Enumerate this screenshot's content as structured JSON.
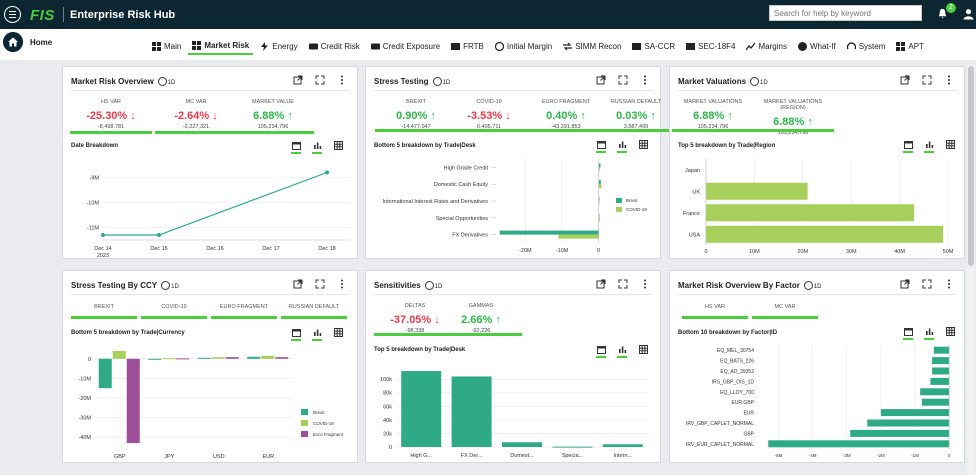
{
  "header": {
    "brand": "FIS",
    "app_title": "Enterprise Risk Hub",
    "search_placeholder": "Search for help by keyword",
    "notifications": "2"
  },
  "nav": {
    "home_label": "Home",
    "tabs": [
      "Main",
      "Market Risk",
      "Energy",
      "Credit Risk",
      "Credit Exposure",
      "FRTB",
      "Initial Margin",
      "SIMM Recon",
      "SA-CCR",
      "SEC-18F4",
      "Margins",
      "What-If",
      "System",
      "APT"
    ],
    "active_tab": "Market Risk"
  },
  "colors": {
    "green": "#4bcd3e",
    "teal": "#2eaa87",
    "lime": "#a6cf5c",
    "purple": "#9c4f96",
    "navy": "#0c2731",
    "pos": "#2fb54a",
    "neg": "#e93a4a"
  },
  "cards": {
    "overview": {
      "title": "Market Risk Overview",
      "clock_label": "1D",
      "kpis": [
        {
          "label": "HS VAR",
          "value": "-25.30%",
          "dir": "down",
          "sub": "-8,498,781"
        },
        {
          "label": "MC VAR",
          "value": "-2.64%",
          "dir": "down",
          "sub": "-2,227,321"
        },
        {
          "label": "MARKET VALUE",
          "value": "6.88%",
          "dir": "up",
          "sub": "105,234,796"
        }
      ],
      "chart_title": "Date Breakdown"
    },
    "stress": {
      "title": "Stress Testing",
      "clock_label": "1D",
      "kpis": [
        {
          "label": "BREXIT",
          "value": "0.90%",
          "dir": "up",
          "sub": "-14,477,047"
        },
        {
          "label": "COVID-19",
          "value": "-3.53%",
          "dir": "down",
          "sub": "6,405,711"
        },
        {
          "label": "EURO FRAGMENT",
          "value": "0.40%",
          "dir": "up",
          "sub": "-43,291,853"
        },
        {
          "label": "RUSSIAN DEFAULT",
          "value": "0.03%",
          "dir": "up",
          "sub": "3,587,499"
        }
      ],
      "chart_title": "Bottom 5 breakdown by Trade|Desk"
    },
    "valuations": {
      "title": "Market Valuations",
      "clock_label": "1D",
      "kpis": [
        {
          "label": "MARKET VALUATIONS",
          "value": "6.88%",
          "dir": "up",
          "sub": "105,234,796"
        },
        {
          "label": "MARKET VALUATIONS (REGION)",
          "value": "6.88%",
          "dir": "up",
          "sub": "105,234,796"
        }
      ],
      "chart_title": "Top 5 breakdown by Trade|Region"
    },
    "stress_ccy": {
      "title": "Stress Testing By CCY",
      "clock_label": "1D",
      "tabs": [
        "BREXIT",
        "COVID-19",
        "EURO FRAGMENT",
        "RUSSIAN DEFAULT"
      ],
      "chart_title": "Bottom 5 breakdown by Trade|Currency"
    },
    "sensitivities": {
      "title": "Sensitivities",
      "clock_label": "1D",
      "kpis": [
        {
          "label": "DELTAS",
          "value": "-37.05%",
          "dir": "down",
          "sub": "-98,338"
        },
        {
          "label": "GAMMAS",
          "value": "2.66%",
          "dir": "up",
          "sub": "-92,226"
        }
      ],
      "chart_title": "Top 5 breakdown by Trade|Desk"
    },
    "factor": {
      "title": "Market Risk Overview By Factor",
      "clock_label": "1D",
      "tabs": [
        "HS VAR",
        "MC VAR"
      ],
      "chart_title": "Bottom 10 breakdown by Factor|ID"
    }
  },
  "chart_data": [
    {
      "type": "line",
      "title": "Date Breakdown",
      "categories": [
        "Dec 14 2023",
        "Dec 15",
        "Dec 16",
        "Dec 17",
        "Dec 18"
      ],
      "series": [
        {
          "name": "Market Risk",
          "points": [
            {
              "x": "Dec 14",
              "y": -11.3
            },
            {
              "x": "Dec 15",
              "y": -11.3
            },
            {
              "x": "Dec 18",
              "y": -8.8
            }
          ]
        }
      ],
      "yticks": [
        "-9M",
        "-10M",
        "-11M"
      ],
      "ylim": [
        -11.5,
        -8.5
      ],
      "ylabel": "",
      "xlabel": ""
    },
    {
      "type": "bar",
      "orientation": "horizontal",
      "title": "Bottom 5 breakdown by Trade|Desk",
      "categories": [
        "High Grade Credit",
        "Domestic Cash Equity",
        "International Interest Rates and Derivatives",
        "Special Opportunities",
        "FX Derivatives"
      ],
      "series": [
        {
          "name": "Brexit",
          "values": [
            0.5,
            0.6,
            0.2,
            0.1,
            -27
          ]
        },
        {
          "name": "COVID-19",
          "values": [
            0.3,
            0.8,
            0.1,
            0.3,
            -11
          ]
        }
      ],
      "xticks": [
        "-20M",
        "-10M",
        "0"
      ],
      "xlim": [
        -28,
        2
      ]
    },
    {
      "type": "bar",
      "orientation": "horizontal",
      "title": "Top 5 breakdown by Trade|Region",
      "categories": [
        "Japan",
        "UK",
        "France",
        "USA"
      ],
      "series": [
        {
          "name": "Market Valuations",
          "values": [
            0,
            21,
            43,
            49
          ]
        }
      ],
      "xticks": [
        "0",
        "10M",
        "20M",
        "30M",
        "40M",
        "50M"
      ],
      "xlim": [
        0,
        50
      ]
    },
    {
      "type": "bar",
      "title": "Bottom 5 breakdown by Trade|Currency",
      "categories": [
        "GBP",
        "JPY",
        "USD",
        "EUR"
      ],
      "series": [
        {
          "name": "Brexit",
          "values": [
            -15,
            0,
            0.5,
            1
          ]
        },
        {
          "name": "COVID-19",
          "values": [
            4,
            0.3,
            0.8,
            1.5
          ]
        },
        {
          "name": "Euro Fragment",
          "values": [
            -43,
            0.2,
            0.8,
            0.8
          ]
        }
      ],
      "yticks": [
        "0",
        "-10M",
        "-20M",
        "-30M",
        "-40M"
      ],
      "ylim": [
        -45,
        6
      ]
    },
    {
      "type": "bar",
      "title": "Top 5 breakdown by Trade|Desk",
      "categories": [
        "High G...",
        "FX Der...",
        "Domest...",
        "Specia...",
        "Intern..."
      ],
      "series": [
        {
          "name": "Sensitivities",
          "values": [
            112,
            104,
            7,
            0.5,
            4
          ]
        }
      ],
      "yticks": [
        "0",
        "20k",
        "40k",
        "60k",
        "80k",
        "100k"
      ],
      "ylim": [
        0,
        115
      ]
    },
    {
      "type": "bar",
      "orientation": "horizontal",
      "title": "Bottom 10 breakdown by Factor|ID",
      "categories": [
        "EQ_MEL_30754",
        "EQ_BATS_226",
        "EQ_AD_39352",
        "IRS_GBP_OIS_1D",
        "EQ_LLOY_700",
        "EUR.GBP",
        "EUR",
        "IRV_GBP_CAPLET_NORMAL",
        "GBP",
        "IRV_EUR_CAPLET_NORMAL"
      ],
      "series": [
        {
          "name": "HS VAR",
          "values": [
            -0.45,
            -0.5,
            -0.5,
            -0.55,
            -0.85,
            -0.8,
            -2.0,
            -2.4,
            -2.9,
            -5.3
          ]
        }
      ],
      "xticks": [
        "-5M",
        "-4M",
        "-3M",
        "-2M",
        "-1M",
        "0"
      ],
      "xlim": [
        -5.6,
        0.2
      ]
    }
  ]
}
